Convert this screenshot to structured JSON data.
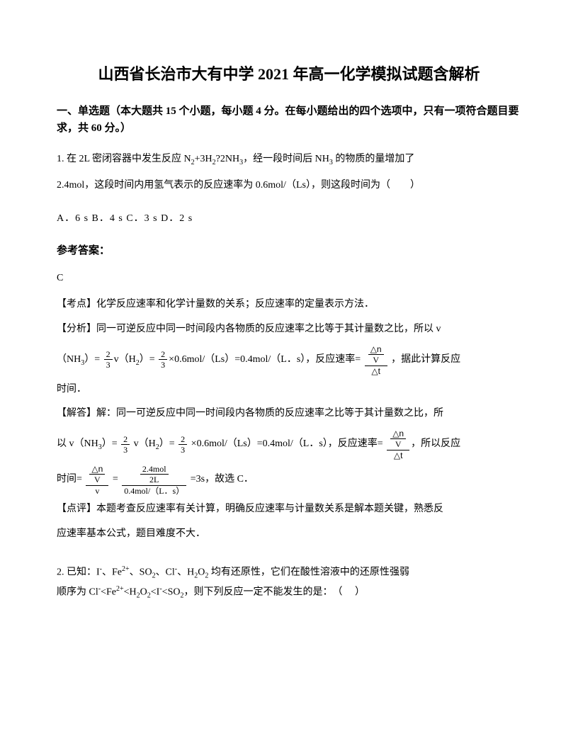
{
  "title": "山西省长治市大有中学 2021 年高一化学模拟试题含解析",
  "section_header": "一、单选题（本大题共 15 个小题，每小题 4 分。在每小题给出的四个选项中，只有一项符合题目要求，共 60 分。）",
  "q1": {
    "text_part1": "1. 在 2L 密闭容器中发生反应 N",
    "text_part2": "+3H",
    "text_part3": "?2NH",
    "text_part4": "，经一段时间后 NH",
    "text_part5": " 的物质的量增加了",
    "text_line2": "2.4mol，这段时间内用氢气表示的反应速率为 0.6mol/（Ls），则这段时间为（　　）",
    "options": "A．6 s  B．4 s  C．3 s  D．2 s",
    "answer_label": "参考答案：",
    "answer": "C",
    "kaodian": "【考点】化学反应速率和化学计量数的关系；反应速率的定量表示方法．",
    "fenxi": "【分析】同一可逆反应中同一时间段内各物质的反应速率之比等于其计量数之比，所以 v",
    "formula1_prefix": "（NH",
    "formula1_mid1": "）= ",
    "formula1_mid2": "v（H",
    "formula1_mid3": "）= ",
    "formula1_mid4": "×0.6mol/（Ls）=0.4mol/（L．s），反应速率= ",
    "formula1_suffix": " ，据此计算反应",
    "formula1_end": "时间．",
    "jieda": "【解答】解：同一可逆反应中同一时间段内各物质的反应速率之比等于其计量数之比，所",
    "formula2_prefix": "以 v（NH",
    "formula2_mid1": "）= ",
    "formula2_mid2": " v（H",
    "formula2_mid3": "）= ",
    "formula2_mid4": " ×0.6mol/（Ls）=0.4mol/（L．s），反应速率= ",
    "formula2_suffix": "，所以反应",
    "formula3_prefix": "时间= ",
    "formula3_mid": " = ",
    "formula3_suffix": " =3s，故选 C．",
    "dianping1": "【点评】本题考查反应速率有关计算，明确反应速率与计量数关系是解本题关键，熟悉反",
    "dianping2": "应速率基本公式，题目难度不大．",
    "frac_2_3_num": "2",
    "frac_2_3_den": "3",
    "frac_dn_v_num": "△n",
    "frac_dn_v_den": "V",
    "frac_dt": "△t",
    "frac_2p4_num": "2.4mol",
    "frac_2p4_den": "2L",
    "frac_rate_den": "0.4mol/（L．s）",
    "frac_v": "v"
  },
  "q2": {
    "line1_p1": "2. 已知：I",
    "line1_p2": "、Fe",
    "line1_p3": "、SO",
    "line1_p4": "、Cl",
    "line1_p5": "、H",
    "line1_p6": "O",
    "line1_p7": " 均有还原性，它们在酸性溶液中的还原性强弱",
    "line2_p1": "顺序为 Cl",
    "line2_p2": "<Fe",
    "line2_p3": "<H",
    "line2_p4": "O",
    "line2_p5": "<I",
    "line2_p6": "<SO",
    "line2_p7": "，则下列反应一定不能发生的是：　（　 ）"
  }
}
